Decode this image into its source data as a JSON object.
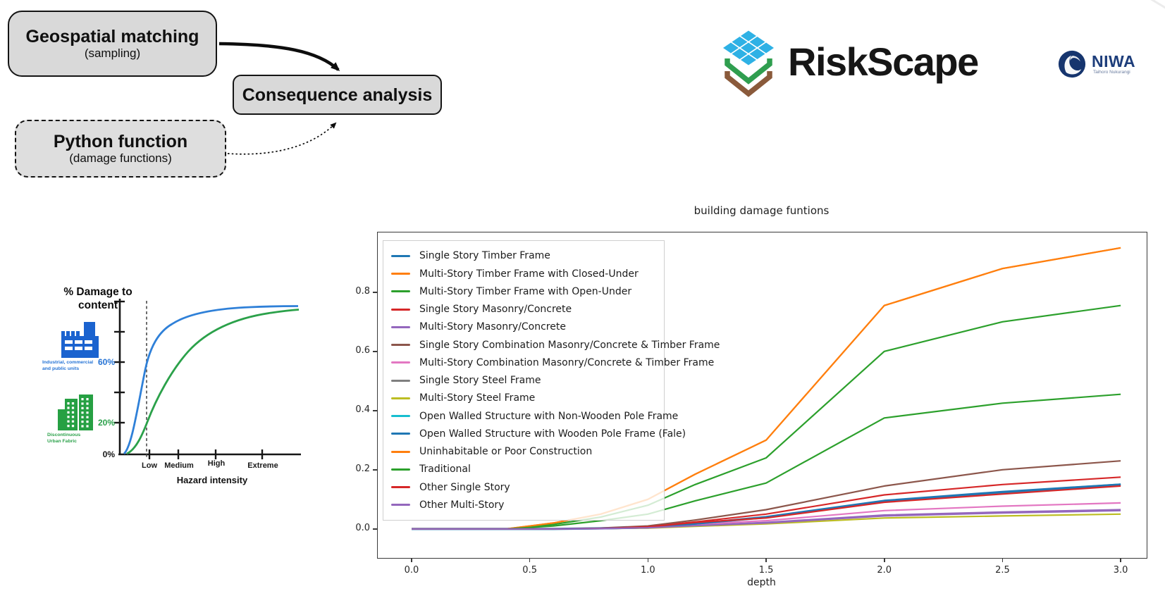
{
  "flowchart": {
    "geospatial": {
      "title": "Geospatial matching",
      "subtitle": "(sampling)"
    },
    "consequence": {
      "title": "Consequence analysis"
    },
    "python": {
      "title": "Python function",
      "subtitle": "(damage functions)"
    }
  },
  "logos": {
    "riskscape_text": "RiskScape",
    "niwa_text": "NIWA",
    "niwa_subtext": "Taihoro Nukurangi",
    "icons": [
      "riskscape-layers-icon",
      "niwa-swirl-icon"
    ]
  },
  "colors": {
    "flow_box_fill": "#d9d9d9",
    "riskscape_blue": "#2eb1e5",
    "riskscape_green": "#2f9e4f",
    "riskscape_brown": "#8a5a3b",
    "niwa_navy": "#16356e",
    "mini_blue": "#2573d5",
    "mini_green": "#2ba14a"
  },
  "mini_chart": {
    "title_line1": "% Damage to",
    "title_line2": "content",
    "y_labels": {
      "p60": "60%",
      "p20": "20%",
      "p0": "0%"
    },
    "x_labels": [
      "Low",
      "Medium",
      "High",
      "Extreme"
    ],
    "x_title": "Hazard intensity",
    "icon1_line1": "Industrial, commercial",
    "icon1_line2": "and public units",
    "icon2_line1": "Discontinuous",
    "icon2_line2": "Urban Fabric",
    "icons": [
      "factory-icon",
      "buildings-icon"
    ]
  },
  "chart_data": {
    "type": "line",
    "title": "building damage funtions",
    "xlabel": "depth",
    "ylabel": "",
    "x_ticks": [
      "0.0",
      "0.5",
      "1.0",
      "1.5",
      "2.0",
      "2.5",
      "3.0"
    ],
    "y_ticks": [
      "0.0",
      "0.2",
      "0.4",
      "0.6",
      "0.8"
    ],
    "xlim": [
      -0.143,
      3.11
    ],
    "ylim": [
      -0.098,
      1.002
    ],
    "grid": false,
    "legend_position": "upper left",
    "x": [
      0,
      0.4,
      0.6,
      0.8,
      1.0,
      1.2,
      1.5,
      2.0,
      2.5,
      3.0
    ],
    "series": [
      {
        "name": "Single Story Timber Frame",
        "color": "#1f77b4",
        "values": [
          0,
          0,
          0,
          0.002,
          0.005,
          0.018,
          0.04,
          0.095,
          0.125,
          0.15
        ]
      },
      {
        "name": "Multi-Story Timber Frame with Closed-Under",
        "color": "#ff7f0e",
        "values": [
          0,
          0,
          0.02,
          0.05,
          0.1,
          0.185,
          0.3,
          0.755,
          0.88,
          0.95
        ]
      },
      {
        "name": "Multi-Story Timber Frame with Open-Under",
        "color": "#2ca02c",
        "values": [
          0,
          0,
          0.015,
          0.04,
          0.08,
          0.15,
          0.24,
          0.6,
          0.7,
          0.755
        ]
      },
      {
        "name": "Single Story Masonry/Concrete",
        "color": "#d62728",
        "values": [
          0,
          0,
          0,
          0.002,
          0.008,
          0.024,
          0.05,
          0.115,
          0.15,
          0.175
        ]
      },
      {
        "name": "Multi-Story Masonry/Concrete",
        "color": "#9467bd",
        "values": [
          0,
          0,
          0,
          0.001,
          0.004,
          0.012,
          0.022,
          0.047,
          0.057,
          0.065
        ]
      },
      {
        "name": "Single Story Combination Masonry/Concrete & Timber Frame",
        "color": "#8c564b",
        "values": [
          0,
          0,
          0,
          0.003,
          0.01,
          0.03,
          0.065,
          0.145,
          0.2,
          0.23
        ]
      },
      {
        "name": "Multi-Story Combination Masonry/Concrete & Timber Frame",
        "color": "#e377c2",
        "values": [
          0,
          0,
          0,
          0.002,
          0.006,
          0.016,
          0.028,
          0.062,
          0.077,
          0.088
        ]
      },
      {
        "name": "Single Story Steel Frame",
        "color": "#7f7f7f",
        "values": [
          0,
          0,
          0,
          0.002,
          0.005,
          0.017,
          0.038,
          0.092,
          0.122,
          0.148
        ]
      },
      {
        "name": "Multi-Story Steel Frame",
        "color": "#bcbd22",
        "values": [
          0,
          0,
          0,
          0.001,
          0.003,
          0.009,
          0.017,
          0.037,
          0.044,
          0.05
        ]
      },
      {
        "name": "Open Walled Structure with Non-Wooden Pole Frame",
        "color": "#17becf",
        "values": [
          0,
          0,
          0,
          0.002,
          0.005,
          0.018,
          0.04,
          0.095,
          0.125,
          0.151
        ]
      },
      {
        "name": "Open Walled Structure with Wooden Pole Frame (Fale)",
        "color": "#1f77b4",
        "width": 3.2,
        "values": [
          0,
          0,
          0,
          0.002,
          0.005,
          0.018,
          0.04,
          0.095,
          0.125,
          0.15
        ]
      },
      {
        "name": "Uninhabitable or Poor Construction",
        "color": "#ff7f0e",
        "values": [
          0,
          0,
          0.02,
          0.05,
          0.1,
          0.185,
          0.3,
          0.755,
          0.88,
          0.95
        ]
      },
      {
        "name": "Traditional",
        "color": "#2ca02c",
        "values": [
          0,
          0,
          0.01,
          0.028,
          0.05,
          0.095,
          0.155,
          0.375,
          0.425,
          0.455
        ]
      },
      {
        "name": "Other Single Story",
        "color": "#d62728",
        "values": [
          0,
          0,
          0,
          0.002,
          0.007,
          0.022,
          0.037,
          0.09,
          0.118,
          0.145
        ]
      },
      {
        "name": "Other Multi-Story",
        "color": "#9467bd",
        "values": [
          0,
          0,
          0,
          0.001,
          0.004,
          0.011,
          0.02,
          0.044,
          0.054,
          0.062
        ]
      }
    ]
  }
}
